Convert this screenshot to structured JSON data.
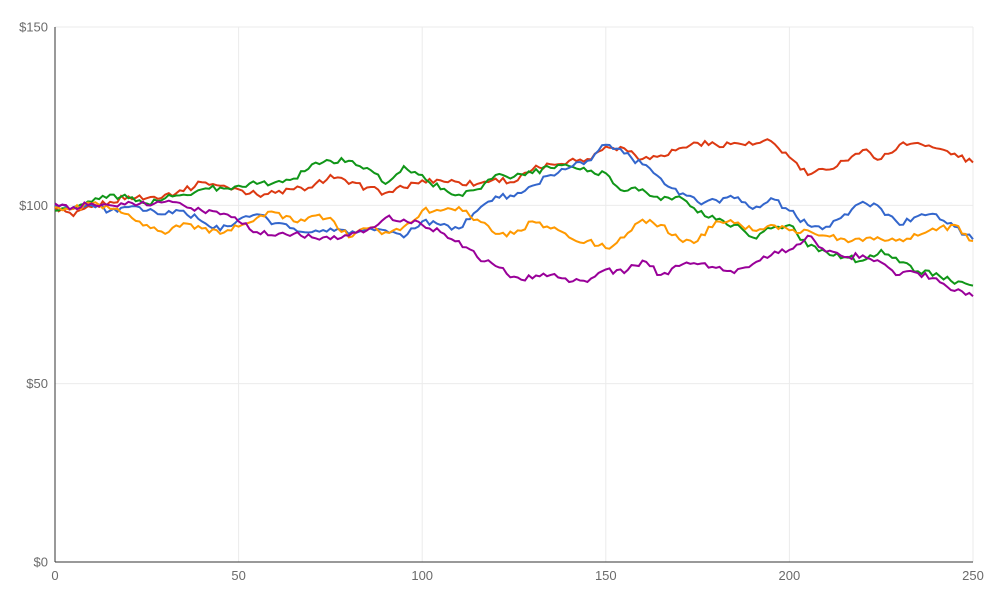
{
  "page": {
    "background": "#ffffff"
  },
  "style": {
    "axis_color": "#333333",
    "grid_color": "#ebebeb",
    "tick_label_color": "#6b6b6b",
    "line_width": 2
  },
  "chart_data": {
    "type": "line",
    "legend": "none",
    "grid": true,
    "xlim": [
      0,
      250
    ],
    "ylim": [
      0,
      150
    ],
    "x_ticks": {
      "values": [
        0,
        50,
        100,
        150,
        200,
        250
      ],
      "labels": [
        "0",
        "50",
        "100",
        "150",
        "200",
        "250"
      ]
    },
    "y_ticks": {
      "values": [
        0,
        50,
        100,
        150
      ],
      "labels": [
        "$0",
        "$50",
        "$100",
        "$150"
      ]
    },
    "x_sample_step": 5,
    "series": [
      {
        "name": "red",
        "color": "#dc3912",
        "values": [
          99.5,
          97,
          99.5,
          101,
          102.5,
          102,
          103,
          104,
          106.5,
          105.5,
          104.5,
          103,
          103.5,
          104.5,
          105,
          108.5,
          106,
          105,
          103.5,
          105,
          107,
          107,
          106.5,
          106,
          107.5,
          106.5,
          110,
          111.5,
          112.5,
          113,
          116.5,
          116,
          113,
          114,
          116,
          117.5,
          117,
          117.5,
          117,
          118,
          113.5,
          108.5,
          110,
          112.5,
          115.5,
          113,
          117,
          117.5,
          116,
          114.5,
          112
        ]
      },
      {
        "name": "green",
        "color": "#109618",
        "values": [
          98.5,
          99,
          101,
          103,
          102,
          100.5,
          102,
          103,
          104.5,
          105,
          105.5,
          106,
          106.5,
          107.5,
          111.5,
          112.5,
          112.5,
          110.5,
          106,
          111,
          108.5,
          104.5,
          103,
          104.5,
          108.5,
          108,
          109,
          110.5,
          111,
          109.5,
          109,
          104,
          104.5,
          101.5,
          102.5,
          98,
          96,
          94.5,
          91,
          93.5,
          94.5,
          88.5,
          87,
          85.5,
          84.5,
          87.5,
          84,
          81.5,
          81,
          78,
          77.5
        ]
      },
      {
        "name": "blue",
        "color": "#3366cc",
        "values": [
          100,
          99.5,
          100,
          98.5,
          99.5,
          98.5,
          97.5,
          98.5,
          95.5,
          93,
          96,
          97.5,
          95,
          93.5,
          92.5,
          93.5,
          92,
          93.5,
          93,
          91,
          95.5,
          94.5,
          93.5,
          98.5,
          102.5,
          102.5,
          105.5,
          108.5,
          110.5,
          112.5,
          117,
          114.5,
          111.5,
          107.5,
          103,
          101,
          101.5,
          102,
          99,
          102,
          98.5,
          94.5,
          94,
          97.5,
          101,
          99,
          94.5,
          97,
          97.5,
          94,
          90.5
        ]
      },
      {
        "name": "orange",
        "color": "#ff9900",
        "values": [
          99.5,
          99,
          100.5,
          99,
          97.5,
          94.5,
          92,
          95,
          93.5,
          92,
          94,
          96.5,
          98,
          95.5,
          97,
          96.5,
          91,
          93.5,
          92.5,
          94,
          98.5,
          98.5,
          99.5,
          96,
          92,
          92,
          95.5,
          93.5,
          91,
          90,
          88,
          91,
          96,
          94.5,
          90.5,
          90,
          95.5,
          95,
          93,
          94.5,
          93,
          93,
          91.5,
          90.5,
          90,
          90.5,
          90.5,
          91.5,
          93,
          94.5,
          90
        ]
      },
      {
        "name": "purple",
        "color": "#990099",
        "values": [
          100.5,
          99.5,
          100.5,
          100,
          101,
          100,
          101,
          100,
          98.5,
          97.5,
          95.5,
          92.5,
          91.5,
          92,
          91,
          90.5,
          91.5,
          93,
          96.5,
          96,
          94.5,
          92.5,
          90,
          85.5,
          83,
          80,
          79.5,
          80.5,
          78.5,
          78.5,
          82,
          81,
          84.5,
          80.5,
          83,
          83.5,
          82.5,
          81,
          83.5,
          86,
          87.5,
          91.5,
          87,
          85.5,
          86,
          84,
          80.5,
          81,
          79.5,
          76,
          74.5
        ]
      }
    ]
  }
}
